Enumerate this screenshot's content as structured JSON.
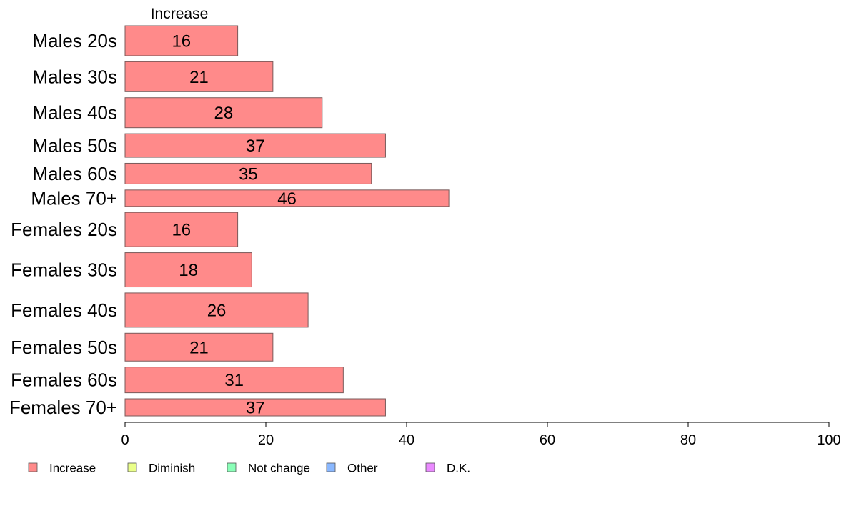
{
  "chart_data": {
    "type": "bar",
    "orientation": "horizontal",
    "stacked": true,
    "column_header": "Increase",
    "categories": [
      "Males 20s",
      "Males 30s",
      "Males 40s",
      "Males 50s",
      "Males 60s",
      "Males 70+",
      "Females 20s",
      "Females 30s",
      "Females 40s",
      "Females 50s",
      "Females 60s",
      "Females 70+"
    ],
    "relative_bar_thickness": [
      42,
      42,
      42,
      33,
      29,
      23,
      48,
      48,
      48,
      39,
      36,
      24
    ],
    "series": [
      {
        "name": "Increase",
        "color": "#ff8a8a",
        "values": [
          16,
          21,
          28,
          37,
          35,
          46,
          16,
          18,
          26,
          21,
          31,
          37
        ]
      }
    ],
    "xlim": [
      0,
      100
    ],
    "xticks": [
      0,
      20,
      40,
      60,
      80,
      100
    ],
    "grid": false,
    "legend_position": "bottom",
    "legend": [
      {
        "label": "Increase",
        "color": "#ff8a8a"
      },
      {
        "label": "Diminish",
        "color": "#eaff8a"
      },
      {
        "label": "Not change",
        "color": "#8affb8"
      },
      {
        "label": "Other",
        "color": "#8ab8ff"
      },
      {
        "label": "D.K.",
        "color": "#ea8aff"
      }
    ]
  }
}
